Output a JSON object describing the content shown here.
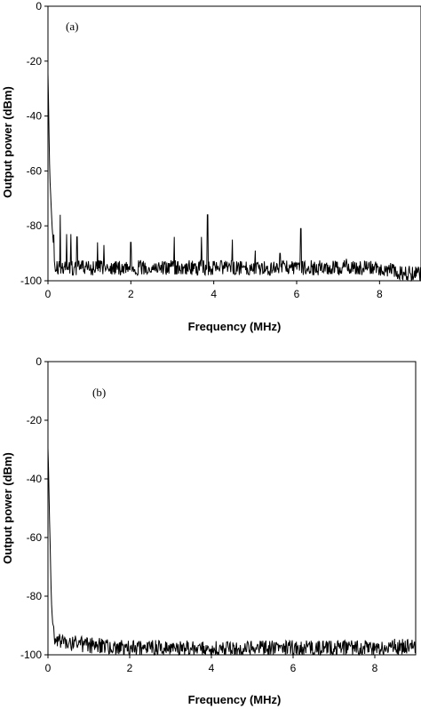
{
  "chart_data": [
    {
      "type": "line",
      "panel_label": "(a)",
      "xlabel": "Frequency (MHz)",
      "ylabel": "Output  power  (dBm)",
      "xlim": [
        0,
        9
      ],
      "ylim": [
        -100,
        0
      ],
      "xticks": [
        0,
        2,
        4,
        6,
        8
      ],
      "yticks": [
        0,
        -20,
        -40,
        -60,
        -80,
        -100
      ],
      "grid": false,
      "noise_floor": -96,
      "series": [
        {
          "color": "#000000",
          "x": [
            0,
            0.02,
            0.04,
            0.07,
            0.1,
            0.13,
            0.16,
            0.2,
            0.25,
            0.3,
            0.35,
            0.4,
            0.45,
            0.5,
            0.6,
            0.7,
            0.8,
            1.0,
            1.2,
            1.3,
            2.0,
            3.05,
            3.7,
            3.85,
            4.45,
            5.0,
            5.6,
            6.1,
            7.0,
            8.0,
            9.0
          ],
          "values": [
            -23,
            -40,
            -58,
            -70,
            -80,
            -85,
            -76,
            -82,
            -85,
            -80,
            -86,
            -83,
            -88,
            -84,
            -88,
            -86,
            -89,
            -89,
            -88,
            -88,
            -86,
            -84,
            -84,
            -76,
            -85,
            -89,
            -89,
            -81,
            -92,
            -93,
            -95
          ]
        }
      ],
      "peaks": [
        {
          "x": 0.3,
          "y": -76
        },
        {
          "x": 0.45,
          "y": -83
        },
        {
          "x": 0.55,
          "y": -83
        },
        {
          "x": 0.7,
          "y": -84
        },
        {
          "x": 1.2,
          "y": -86
        },
        {
          "x": 1.35,
          "y": -87
        },
        {
          "x": 2.0,
          "y": -86
        },
        {
          "x": 3.05,
          "y": -84
        },
        {
          "x": 3.7,
          "y": -84
        },
        {
          "x": 3.85,
          "y": -76
        },
        {
          "x": 4.45,
          "y": -85
        },
        {
          "x": 5.0,
          "y": -89
        },
        {
          "x": 5.6,
          "y": -90
        },
        {
          "x": 6.1,
          "y": -81
        },
        {
          "x": 7.2,
          "y": -92
        }
      ]
    },
    {
      "type": "line",
      "panel_label": "(b)",
      "xlabel": "Frequency (MHz)",
      "ylabel": "Output  power  (dBm)",
      "xlim": [
        0,
        9
      ],
      "ylim": [
        -100,
        0
      ],
      "xticks": [
        0,
        2,
        4,
        6,
        8
      ],
      "yticks": [
        0,
        -20,
        -40,
        -60,
        -80,
        -100
      ],
      "grid": false,
      "noise_floor": -96,
      "series": [
        {
          "color": "#000000",
          "x": [
            0,
            0.02,
            0.04,
            0.06,
            0.08,
            0.1,
            0.12,
            0.15,
            0.2,
            0.3,
            0.5,
            1.0,
            2.0,
            3.0,
            4.0,
            5.0,
            6.0,
            7.0,
            8.0,
            9.0
          ],
          "values": [
            -28,
            -40,
            -55,
            -66,
            -78,
            -85,
            -88,
            -90,
            -91,
            -92,
            -93,
            -94,
            -95,
            -95,
            -95,
            -95,
            -95,
            -95,
            -95,
            -94
          ]
        }
      ],
      "peaks": []
    }
  ]
}
